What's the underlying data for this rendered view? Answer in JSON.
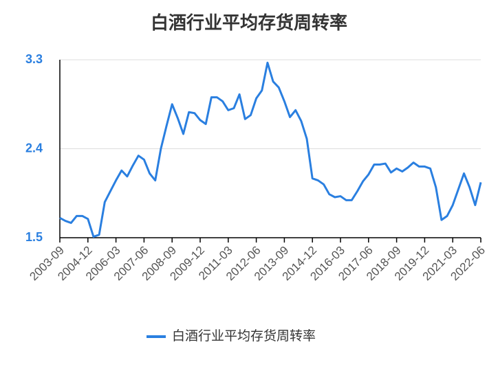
{
  "chart_data": {
    "type": "line",
    "title": "白酒行业平均存货周转率",
    "categories": [
      "2003-09",
      null,
      null,
      null,
      null,
      "2004-12",
      null,
      null,
      null,
      null,
      "2006-03",
      null,
      null,
      null,
      null,
      "2007-06",
      null,
      null,
      null,
      null,
      "2008-09",
      null,
      null,
      null,
      null,
      "2009-12",
      null,
      null,
      null,
      null,
      "2011-03",
      null,
      null,
      null,
      null,
      "2012-06",
      null,
      null,
      null,
      null,
      "2013-09",
      null,
      null,
      null,
      null,
      "2014-12",
      null,
      null,
      null,
      null,
      "2016-03",
      null,
      null,
      null,
      null,
      "2017-06",
      null,
      null,
      null,
      null,
      "2018-09",
      null,
      null,
      null,
      null,
      "2019-12",
      null,
      null,
      null,
      null,
      "2021-03",
      null,
      null,
      null,
      null,
      "2022-06"
    ],
    "series": [
      {
        "name": "白酒行业平均存货周转率",
        "color": "#2a7fe0",
        "values": [
          1.7,
          1.67,
          1.65,
          1.72,
          1.72,
          1.69,
          1.51,
          1.53,
          1.86,
          1.97,
          2.08,
          2.18,
          2.12,
          2.23,
          2.33,
          2.29,
          2.15,
          2.08,
          2.4,
          2.63,
          2.85,
          2.71,
          2.55,
          2.77,
          2.76,
          2.69,
          2.65,
          2.92,
          2.92,
          2.88,
          2.79,
          2.81,
          2.95,
          2.7,
          2.74,
          2.91,
          2.99,
          3.27,
          3.08,
          3.02,
          2.88,
          2.72,
          2.79,
          2.68,
          2.5,
          2.1,
          2.08,
          2.04,
          1.94,
          1.91,
          1.92,
          1.88,
          1.88,
          1.97,
          2.07,
          2.14,
          2.24,
          2.24,
          2.25,
          2.16,
          2.2,
          2.17,
          2.21,
          2.26,
          2.22,
          2.22,
          2.2,
          2.01,
          1.68,
          1.72,
          1.83,
          1.99,
          2.15,
          2.01,
          1.83,
          2.06
        ]
      }
    ],
    "ylim": [
      1.5,
      3.3
    ],
    "yticks": [
      1.5,
      2.4,
      3.3
    ],
    "grid": true,
    "legend": "bottom"
  }
}
